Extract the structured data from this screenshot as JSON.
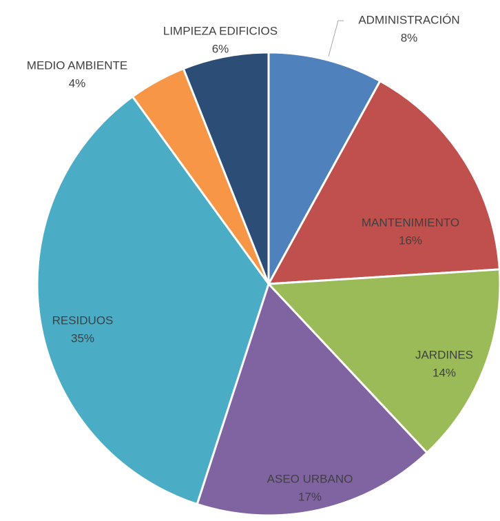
{
  "chart_data": {
    "type": "pie",
    "categories": [
      "ADMINISTRACIÓN",
      "MANTENIMIENTO",
      "JARDINES",
      "ASEO URBANO",
      "RESIDUOS",
      "MEDIO AMBIENTE",
      "LIMPIEZA EDIFICIOS"
    ],
    "values": [
      8,
      16,
      14,
      17,
      35,
      4,
      6
    ],
    "value_labels": [
      "8%",
      "16%",
      "14%",
      "17%",
      "35%",
      "4%",
      "6%"
    ],
    "colors": [
      "#4f81bd",
      "#c0504d",
      "#9bbb59",
      "#8064a2",
      "#4bacc6",
      "#f79646",
      "#2c4d75"
    ]
  }
}
